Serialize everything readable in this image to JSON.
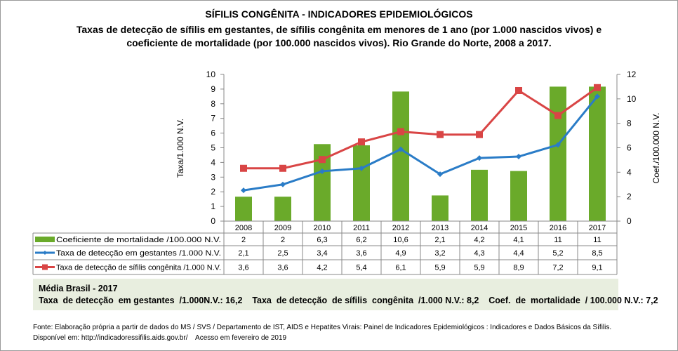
{
  "title": "SÍFILIS CONGÊNITA - INDICADORES EPIDEMIOLÓGICOS",
  "subtitle_line1": "Taxas de detecção de sífilis em gestantes, de sífilis congênita em menores de 1 ano (por 1.000 nascidos vivos) e",
  "subtitle_line2": "coeficiente de mortalidade (por 100.000 nascidos vivos). Rio Grande do Norte, 2008 a 2017.",
  "chart_data": {
    "type": "bar+line",
    "categories": [
      "2008",
      "2009",
      "2010",
      "2011",
      "2012",
      "2013",
      "2014",
      "2015",
      "2016",
      "2017"
    ],
    "ylabel_left": "Taxa/1.000 N.V.",
    "ylabel_right": "Coef./100.000 N.V.",
    "ylim_left": [
      0,
      10
    ],
    "yticks_left": [
      0,
      1,
      2,
      3,
      4,
      5,
      6,
      7,
      8,
      9,
      10
    ],
    "ylim_right": [
      0,
      12
    ],
    "yticks_right": [
      0,
      2,
      4,
      6,
      8,
      10,
      12
    ],
    "grid": false,
    "legend": "data-table",
    "series": [
      {
        "name": "Coeficiente de mortalidade /100.000 N.V.",
        "type": "bar",
        "axis": "right",
        "color": "#6aaa2a",
        "values": [
          2,
          2,
          6.3,
          6.2,
          10.6,
          2.1,
          4.2,
          4.1,
          11,
          11
        ],
        "labels": [
          "2",
          "2",
          "6,3",
          "6,2",
          "10,6",
          "2,1",
          "4,2",
          "4,1",
          "11",
          "11"
        ]
      },
      {
        "name": "Taxa de detecção em gestantes /1.000 N.V.",
        "type": "line",
        "axis": "left",
        "color": "#2a7cc7",
        "values": [
          2.1,
          2.5,
          3.4,
          3.6,
          4.9,
          3.2,
          4.3,
          4.4,
          5.2,
          8.5
        ],
        "labels": [
          "2,1",
          "2,5",
          "3,4",
          "3,6",
          "4,9",
          "3,2",
          "4,3",
          "4,4",
          "5,2",
          "8,5"
        ]
      },
      {
        "name": "Taxa de detecção de sífilis congênita /1.000 N.V.",
        "type": "line",
        "axis": "left",
        "color": "#d94545",
        "values": [
          3.6,
          3.6,
          4.2,
          5.4,
          6.1,
          5.9,
          5.9,
          8.9,
          7.2,
          9.1
        ],
        "labels": [
          "3,6",
          "3,6",
          "4,2",
          "5,4",
          "6,1",
          "5,9",
          "5,9",
          "8,9",
          "7,2",
          "9,1"
        ]
      }
    ]
  },
  "brasil": {
    "heading": "Média Brasil  - 2017",
    "line": "Taxa  de detecção  em gestantes  /1.000N.V.: 16,2    Taxa  de detecção  de sífilis  congênita  /1.000 N.V.: 8,2    Coef.  de  mortalidade  / 100.000 N.V.: 7,2"
  },
  "source_line1": "Fonte: Elaboração própria a partir de dados do MS / SVS / Departamento de IST, AIDS e Hepatites Virais:  Painel de Indicadores Epidemiológicos : Indicadores e Dados Básicos da Sífilis.",
  "source_line2": "Disponível em: http://indicadoressifilis.aids.gov.br/    Acesso em fevereiro de 2019"
}
